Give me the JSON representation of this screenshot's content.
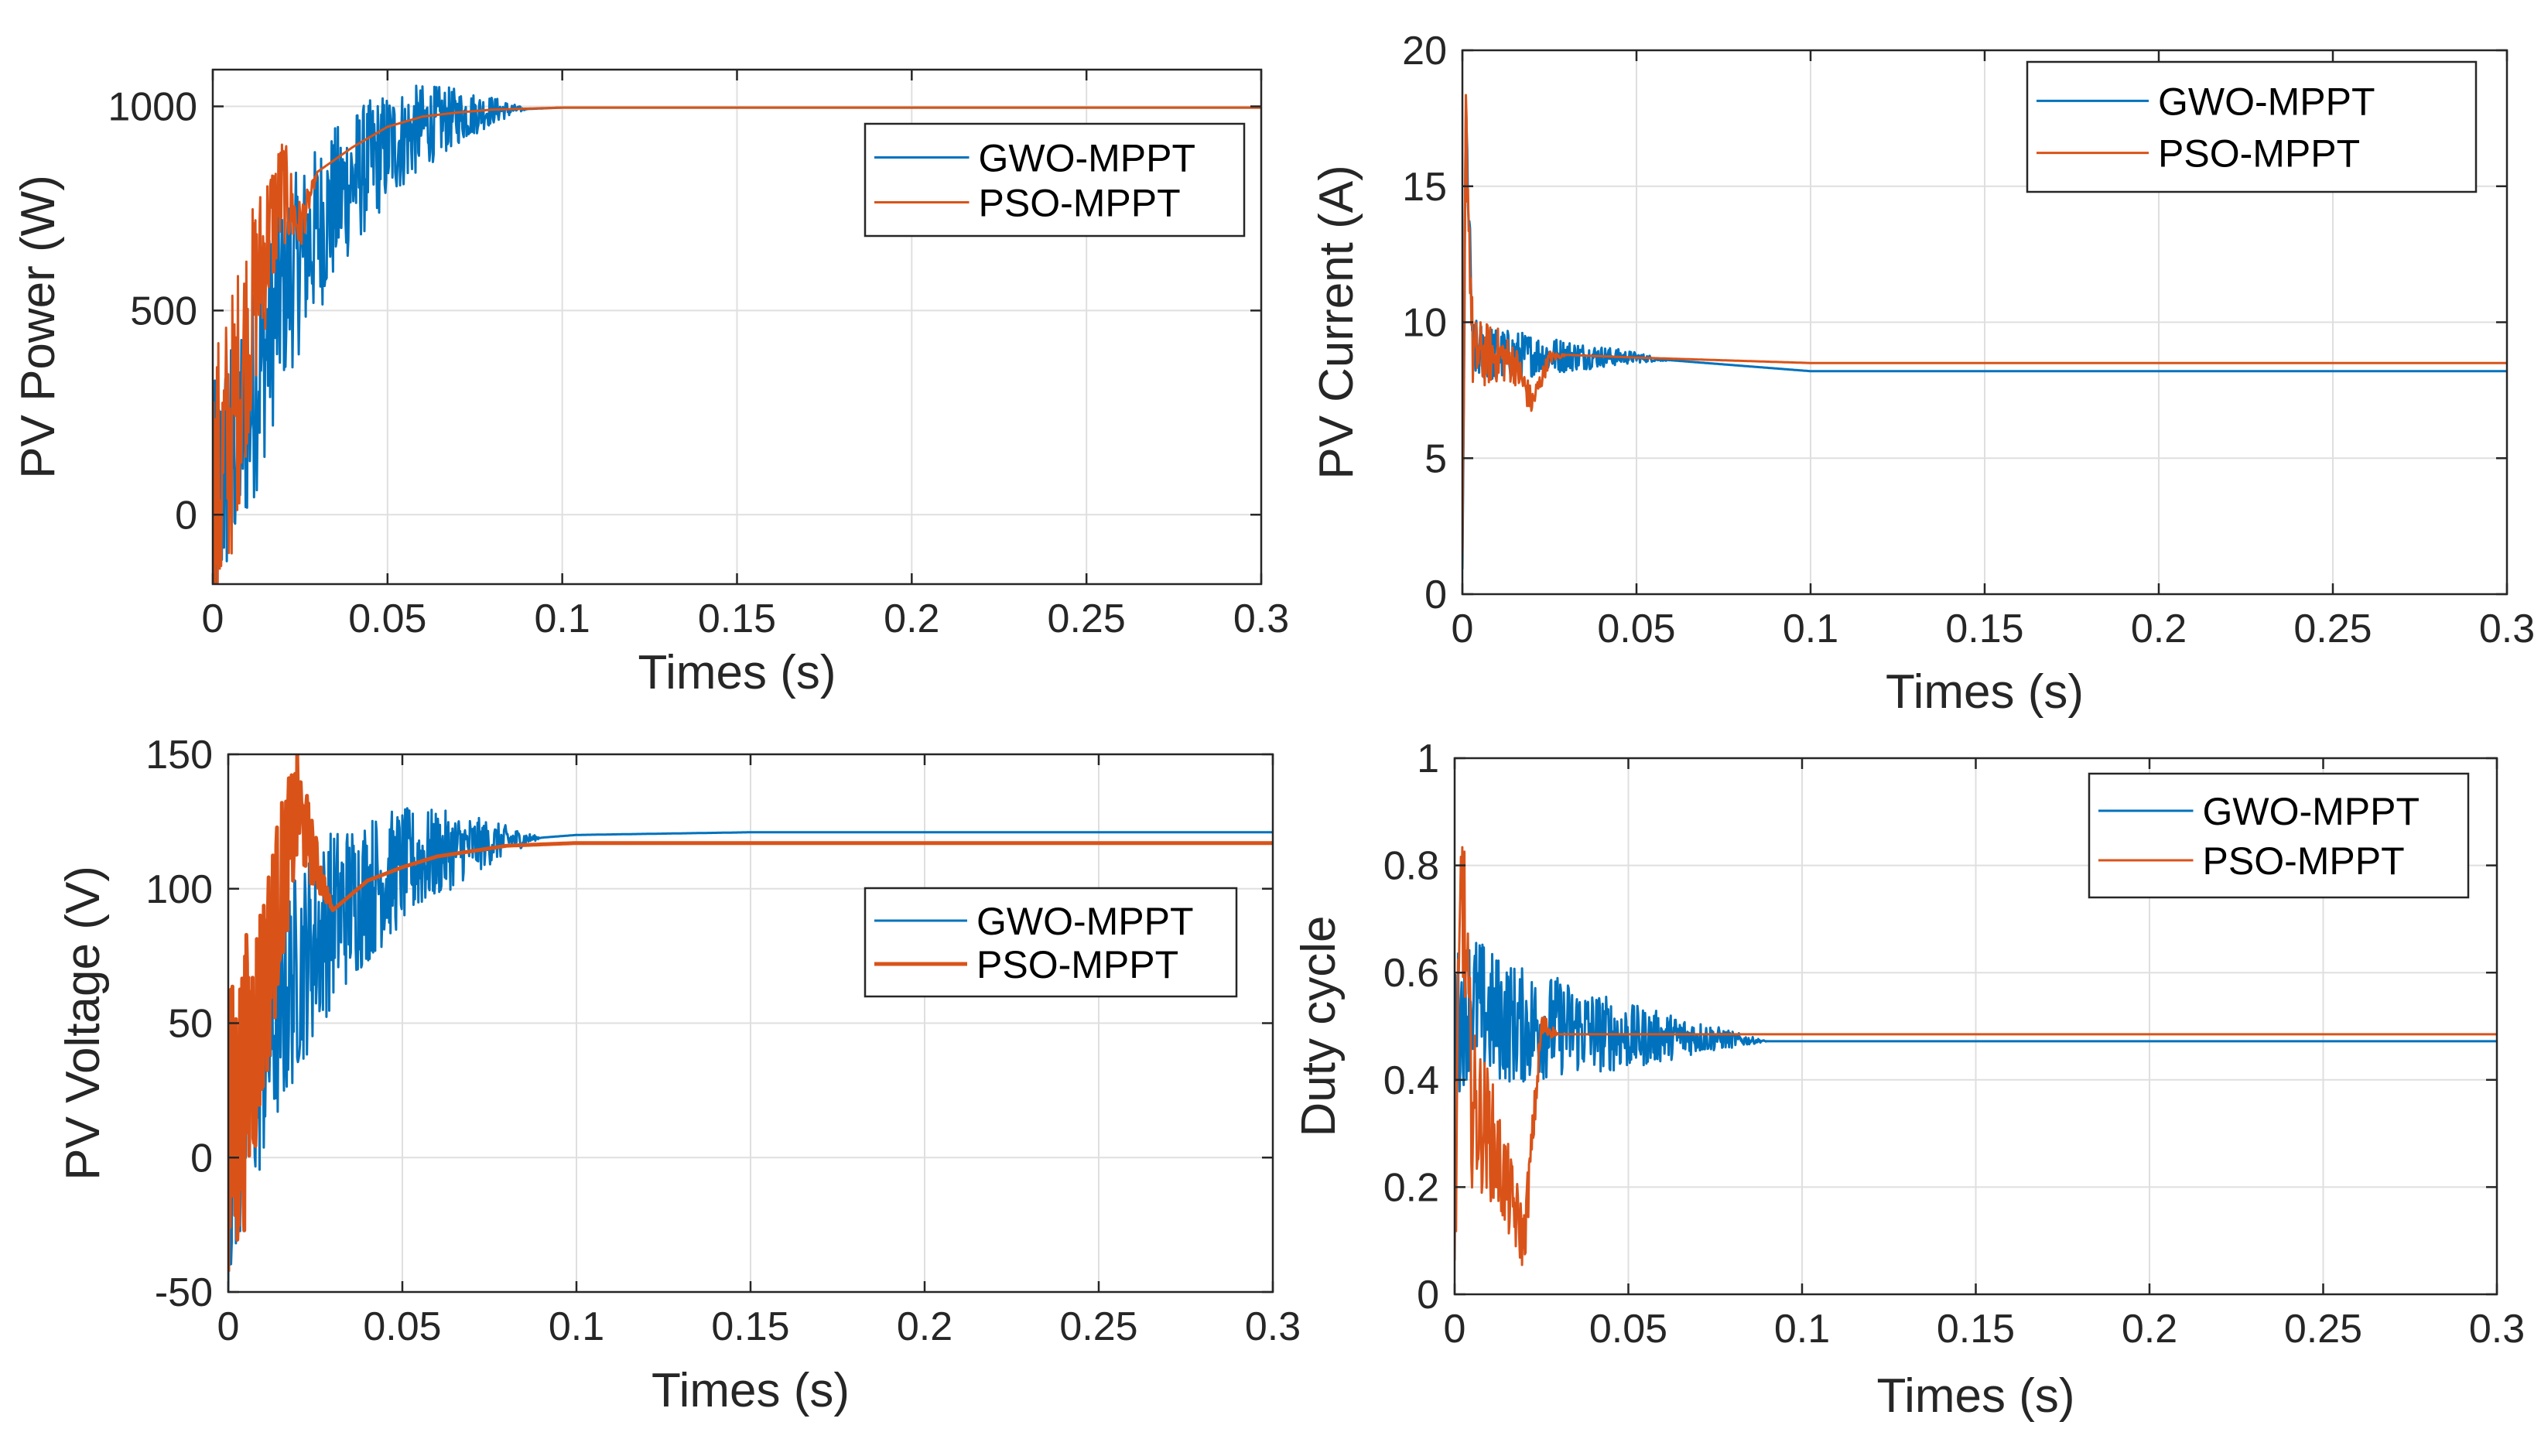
{
  "colors": {
    "gwo": "#0072BD",
    "pso": "#D95319",
    "grid": "#DFDFDF",
    "axis": "#262626"
  },
  "chart_data": [
    {
      "type": "line",
      "xlabel": "Times (s)",
      "ylabel": "PV Power (W)",
      "xlim": [
        0,
        0.3
      ],
      "ylim": [
        -170,
        1090
      ],
      "xticks": [
        0,
        0.05,
        0.1,
        0.15,
        0.2,
        0.25,
        0.3
      ],
      "xtick_labels": [
        "0",
        "0.05",
        "0.1",
        "0.15",
        "0.2",
        "0.25",
        "0.3"
      ],
      "yticks": [
        0,
        500,
        1000
      ],
      "ytick_labels": [
        "0",
        "500",
        "1000"
      ],
      "grid": true,
      "legend": "upper-right",
      "series": [
        {
          "name": "GWO-MPPT",
          "x": [
            0,
            0.005,
            0.01,
            0.02,
            0.03,
            0.04,
            0.05,
            0.06,
            0.07,
            0.08,
            0.1,
            0.15,
            0.2,
            0.25,
            0.3
          ],
          "y": [
            0,
            150,
            250,
            550,
            700,
            820,
            900,
            950,
            975,
            990,
            997,
            997,
            997,
            997,
            997
          ]
        },
        {
          "name": "PSO-MPPT",
          "x": [
            0,
            0.005,
            0.01,
            0.015,
            0.02,
            0.025,
            0.03,
            0.04,
            0.05,
            0.06,
            0.07,
            0.08,
            0.1,
            0.15,
            0.2,
            0.25,
            0.3
          ],
          "y": [
            0,
            200,
            450,
            650,
            800,
            700,
            840,
            900,
            950,
            975,
            985,
            992,
            997,
            997,
            997,
            997,
            997
          ]
        }
      ]
    },
    {
      "type": "line",
      "xlabel": "Times (s)",
      "ylabel": "PV Current (A)",
      "xlim": [
        0,
        0.3
      ],
      "ylim": [
        0,
        20
      ],
      "xticks": [
        0,
        0.05,
        0.1,
        0.15,
        0.2,
        0.25,
        0.3
      ],
      "xtick_labels": [
        "0",
        "0.05",
        "0.1",
        "0.15",
        "0.2",
        "0.25",
        "0.3"
      ],
      "yticks": [
        0,
        5,
        10,
        15,
        20
      ],
      "ytick_labels": [
        "0",
        "5",
        "10",
        "15",
        "20"
      ],
      "grid": true,
      "legend": "upper-right",
      "series": [
        {
          "name": "GWO-MPPT",
          "x": [
            0,
            0.001,
            0.003,
            0.01,
            0.02,
            0.05,
            0.08,
            0.1,
            0.15,
            0.2,
            0.25,
            0.3
          ],
          "y": [
            0,
            17.5,
            9,
            8.8,
            8.8,
            8.7,
            8.4,
            8.2,
            8.2,
            8.2,
            8.2,
            8.2
          ]
        },
        {
          "name": "PSO-MPPT",
          "x": [
            0,
            0.001,
            0.003,
            0.01,
            0.015,
            0.02,
            0.025,
            0.03,
            0.05,
            0.1,
            0.15,
            0.2,
            0.25,
            0.3
          ],
          "y": [
            0,
            17.5,
            8.8,
            8.8,
            8.5,
            7,
            8.7,
            8.8,
            8.7,
            8.5,
            8.5,
            8.5,
            8.5,
            8.5
          ]
        }
      ]
    },
    {
      "type": "line",
      "xlabel": "Times (s)",
      "ylabel": "PV Voltage (V)",
      "xlim": [
        0,
        0.3
      ],
      "ylim": [
        -50,
        150
      ],
      "xticks": [
        0,
        0.05,
        0.1,
        0.15,
        0.2,
        0.25,
        0.3
      ],
      "xtick_labels": [
        "0",
        "0.05",
        "0.1",
        "0.15",
        "0.2",
        "0.25",
        "0.3"
      ],
      "yticks": [
        -50,
        0,
        50,
        100,
        150
      ],
      "ytick_labels": [
        "-50",
        "0",
        "50",
        "100",
        "150"
      ],
      "grid": true,
      "legend": "center-right",
      "series": [
        {
          "name": "GWO-MPPT",
          "x": [
            0,
            0.005,
            0.01,
            0.02,
            0.03,
            0.04,
            0.05,
            0.06,
            0.07,
            0.08,
            0.1,
            0.15,
            0.2,
            0.25,
            0.3
          ],
          "y": [
            0,
            20,
            40,
            70,
            90,
            100,
            108,
            113,
            116,
            118,
            120,
            121,
            121,
            121,
            121
          ]
        },
        {
          "name": "PSO-MPPT",
          "x": [
            0,
            0.005,
            0.01,
            0.015,
            0.02,
            0.025,
            0.03,
            0.04,
            0.05,
            0.06,
            0.07,
            0.08,
            0.1,
            0.15,
            0.2,
            0.25,
            0.3
          ],
          "y": [
            0,
            30,
            60,
            100,
            130,
            110,
            92,
            103,
            108,
            112,
            114,
            116,
            117,
            117,
            117,
            117,
            117
          ]
        }
      ]
    },
    {
      "type": "line",
      "xlabel": "Times (s)",
      "ylabel": "Duty cycle",
      "xlim": [
        0,
        0.3
      ],
      "ylim": [
        0,
        1
      ],
      "xticks": [
        0,
        0.05,
        0.1,
        0.15,
        0.2,
        0.25,
        0.3
      ],
      "xtick_labels": [
        "0",
        "0.05",
        "0.1",
        "0.15",
        "0.2",
        "0.25",
        "0.3"
      ],
      "yticks": [
        0,
        0.2,
        0.4,
        0.6,
        0.8,
        1
      ],
      "ytick_labels": [
        "0",
        "0.2",
        "0.4",
        "0.6",
        "0.8",
        "1"
      ],
      "grid": true,
      "legend": "upper-right",
      "series": [
        {
          "name": "GWO-MPPT",
          "x": [
            0,
            0.005,
            0.01,
            0.02,
            0.03,
            0.04,
            0.05,
            0.06,
            0.07,
            0.08,
            0.09,
            0.1,
            0.15,
            0.2,
            0.25,
            0.3
          ],
          "y": [
            0.5,
            0.55,
            0.52,
            0.5,
            0.5,
            0.49,
            0.48,
            0.48,
            0.48,
            0.475,
            0.472,
            0.472,
            0.472,
            0.472,
            0.472,
            0.472
          ]
        },
        {
          "name": "PSO-MPPT",
          "x": [
            0,
            0.002,
            0.005,
            0.01,
            0.015,
            0.02,
            0.025,
            0.03,
            0.05,
            0.1,
            0.15,
            0.2,
            0.25,
            0.3
          ],
          "y": [
            0.1,
            0.8,
            0.35,
            0.3,
            0.2,
            0.1,
            0.5,
            0.485,
            0.485,
            0.485,
            0.485,
            0.485,
            0.485,
            0.485
          ]
        }
      ]
    }
  ]
}
